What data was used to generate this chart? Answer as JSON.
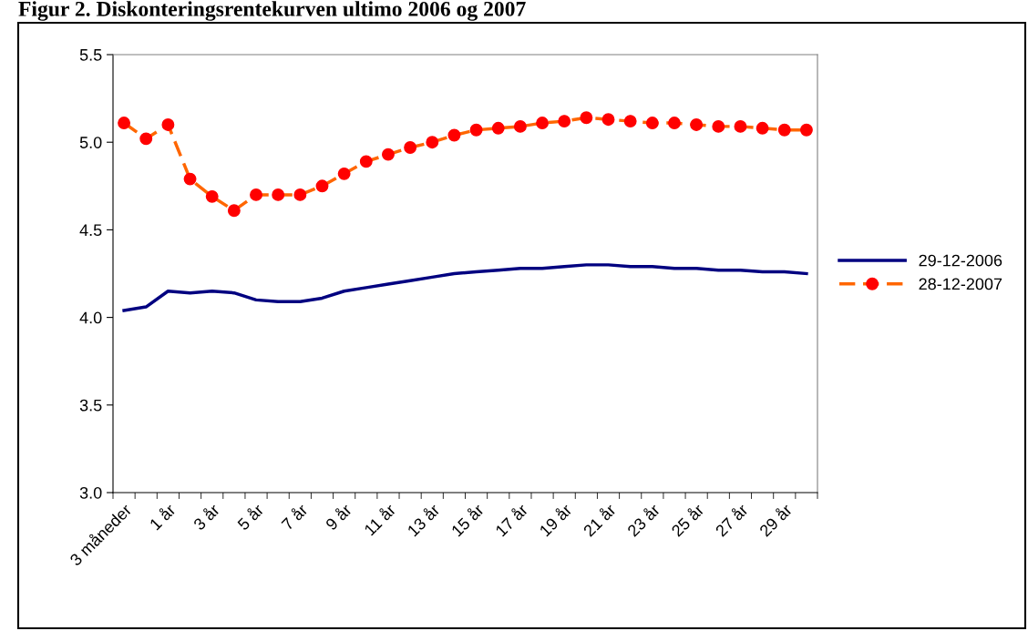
{
  "chart_data": {
    "type": "line",
    "title": "Figur 2. Diskonteringsrentekurven ultimo 2006 og 2007",
    "categories": [
      "3 måneder",
      null,
      "1 år",
      null,
      "3 år",
      null,
      "5 år",
      null,
      "7 år",
      null,
      "9 år",
      null,
      "11 år",
      null,
      "13 år",
      null,
      "15 år",
      null,
      "17 år",
      null,
      "19 år",
      null,
      "21 år",
      null,
      "23 år",
      null,
      "25 år",
      null,
      "27 år",
      null,
      "29 år",
      null
    ],
    "series": [
      {
        "name": "29-12-2006",
        "color": "#000080",
        "line_style": "solid",
        "marker": "none",
        "values": [
          4.04,
          4.06,
          4.15,
          4.14,
          4.15,
          4.14,
          4.1,
          4.09,
          4.09,
          4.11,
          4.15,
          4.17,
          4.19,
          4.21,
          4.23,
          4.25,
          4.26,
          4.27,
          4.28,
          4.28,
          4.29,
          4.3,
          4.3,
          4.29,
          4.29,
          4.28,
          4.28,
          4.27,
          4.27,
          4.26,
          4.26,
          4.25
        ]
      },
      {
        "name": "28-12-2007",
        "color": "#ff6600",
        "colors": [
          "#ff0000",
          "#ff0000",
          "#ff0000",
          "#ff0000",
          "#ff0000",
          "#ff0000",
          "#ff0000",
          "#ff0000",
          "#ff0000",
          "#ff0000",
          "#ff0000",
          "#ff0000",
          "#ff0000",
          "#ff0000",
          "#ff0000",
          "#ff0000",
          "#ff0000",
          "#ff0000",
          "#ff0000",
          "#ff0000",
          "#ff0000",
          "#ff0000",
          "#ff0000",
          "#ff0000",
          "#ff0000",
          "#ff0000",
          "#ff0000",
          "#ff0000",
          "#ff0000",
          "#ff0000",
          "#ff0000",
          "#ff0000"
        ],
        "line_style": "dashed",
        "marker": "circle",
        "values": [
          5.11,
          5.02,
          5.1,
          4.79,
          4.69,
          4.61,
          4.7,
          4.7,
          4.7,
          4.75,
          4.82,
          4.89,
          4.93,
          4.97,
          5.0,
          5.04,
          5.07,
          5.08,
          5.09,
          5.11,
          5.12,
          5.14,
          5.13,
          5.12,
          5.11,
          5.11,
          5.1,
          5.09,
          5.09,
          5.08,
          5.07,
          5.07
        ]
      }
    ],
    "ylim": [
      3.0,
      5.5
    ],
    "yticks": [
      {
        "value": 3.0,
        "label": "3.0"
      },
      {
        "value": 3.5,
        "label": "3.5"
      },
      {
        "value": 4.0,
        "label": "4.0"
      },
      {
        "value": 4.5,
        "label": "4.5"
      },
      {
        "value": 5.0,
        "label": "5.0"
      },
      {
        "value": 5.5,
        "label": "5.5"
      }
    ],
    "grid": false,
    "legend": "right"
  }
}
